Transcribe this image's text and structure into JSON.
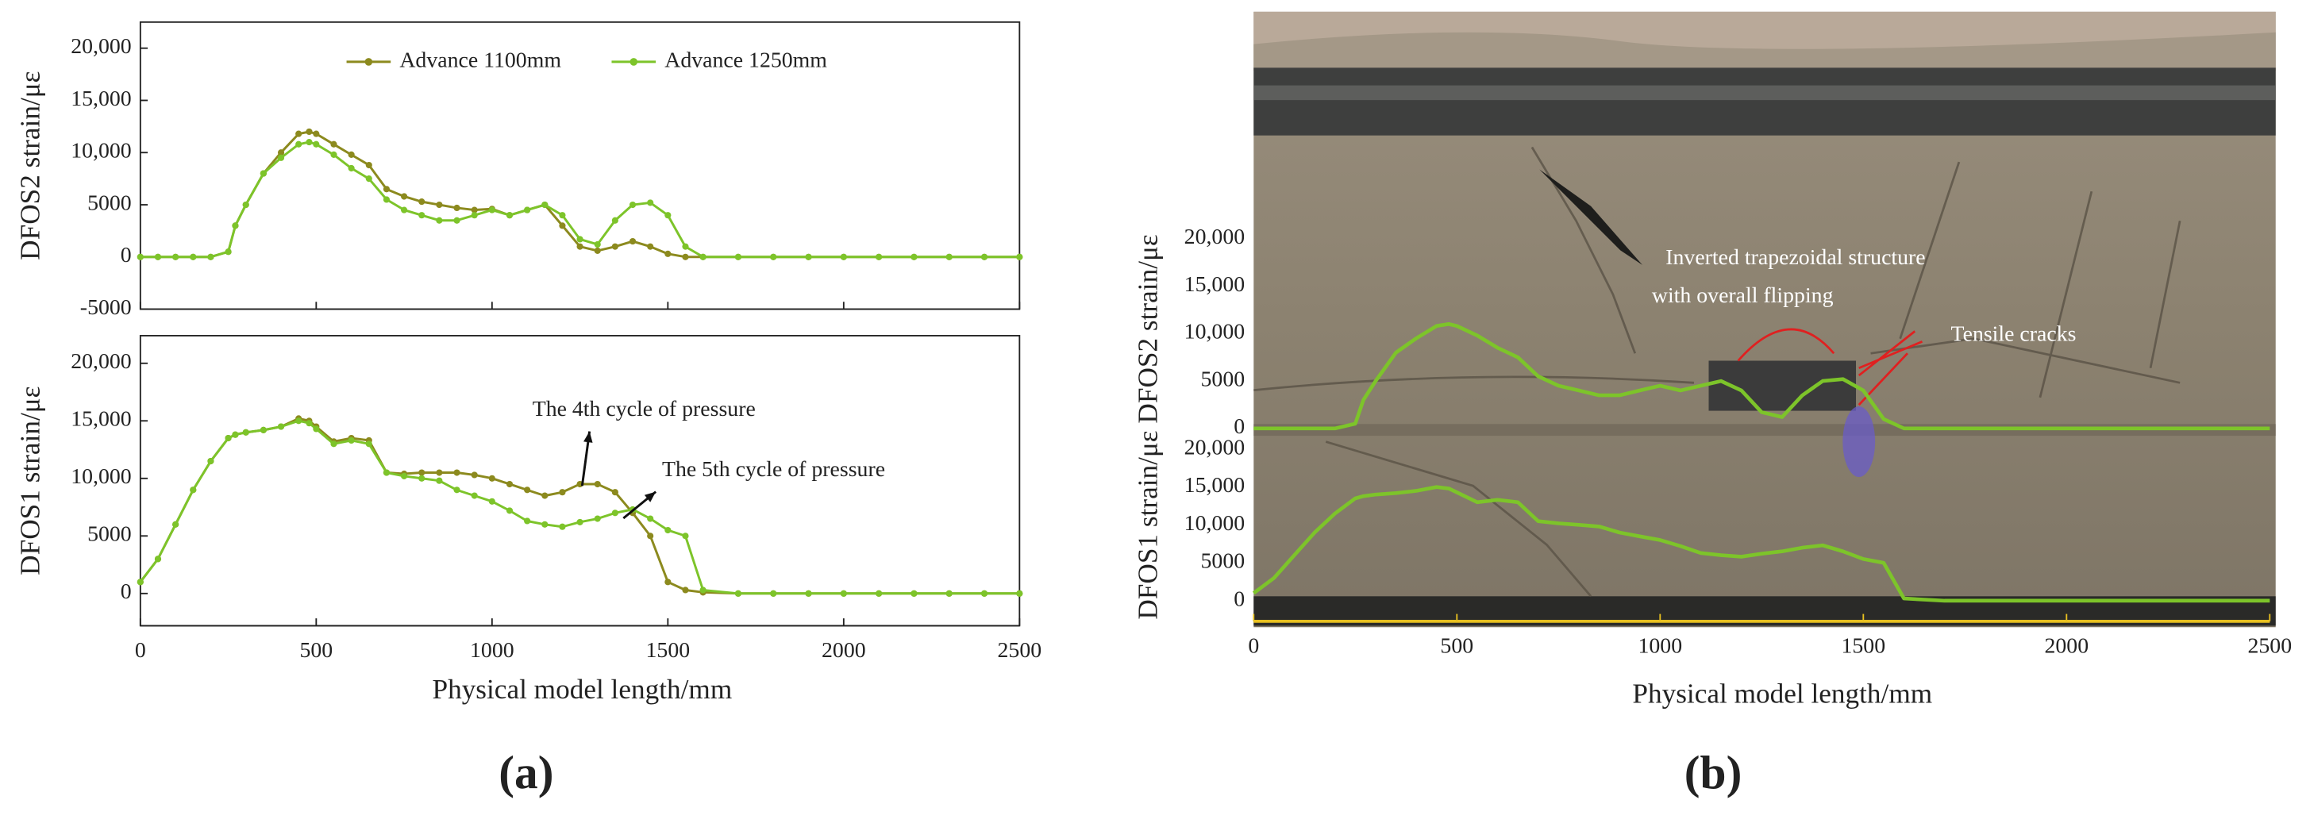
{
  "chart_data": [
    {
      "type": "line",
      "panel_label": "(a)",
      "ylabel": "DFOS2 strain/με",
      "x": [
        0,
        50,
        100,
        150,
        200,
        250,
        270,
        300,
        350,
        400,
        450,
        480,
        500,
        550,
        600,
        650,
        700,
        750,
        800,
        850,
        900,
        950,
        1000,
        1050,
        1100,
        1150,
        1200,
        1250,
        1300,
        1350,
        1400,
        1450,
        1500,
        1550,
        1600,
        1700,
        1800,
        1900,
        2000,
        2100,
        2200,
        2300,
        2400,
        2500
      ],
      "series": [
        {
          "name": "Advance 1100mm",
          "color": "#8c8a1e",
          "values": [
            0,
            0,
            0,
            0,
            0,
            500,
            3000,
            5000,
            8000,
            10000,
            11800,
            12000,
            11800,
            10800,
            9800,
            8800,
            6500,
            5800,
            5300,
            5000,
            4700,
            4500,
            4600,
            4000,
            4500,
            5000,
            3000,
            1000,
            600,
            1000,
            1500,
            1000,
            300,
            0,
            0,
            0,
            0,
            0,
            0,
            0,
            0,
            0,
            0,
            0
          ]
        },
        {
          "name": "Advance 1250mm",
          "color": "#7dc42a",
          "values": [
            0,
            0,
            0,
            0,
            0,
            500,
            3000,
            5000,
            8000,
            9500,
            10800,
            11000,
            10800,
            9800,
            8500,
            7500,
            5500,
            4500,
            4000,
            3500,
            3500,
            4000,
            4500,
            4000,
            4500,
            5000,
            4000,
            1700,
            1200,
            3500,
            5000,
            5200,
            4000,
            1000,
            0,
            0,
            0,
            0,
            0,
            0,
            0,
            0,
            0,
            0
          ]
        }
      ],
      "xlim": [
        0,
        2500
      ],
      "xticks": [
        0,
        500,
        1000,
        1500,
        2000,
        2500
      ],
      "ylim": [
        -5000,
        22500
      ],
      "yticks": [
        -5000,
        0,
        5000,
        {
          "value": 10000,
          "label": "10,000"
        },
        {
          "value": 15000,
          "label": "15,000"
        },
        {
          "value": 20000,
          "label": "20,000"
        }
      ],
      "legend": "top"
    },
    {
      "type": "line",
      "ylabel": "DFOS1 strain/με",
      "xlabel": "Physical model length/mm",
      "x": [
        0,
        50,
        100,
        150,
        200,
        250,
        270,
        300,
        350,
        400,
        450,
        480,
        500,
        550,
        600,
        650,
        700,
        750,
        800,
        850,
        900,
        950,
        1000,
        1050,
        1100,
        1150,
        1200,
        1250,
        1300,
        1350,
        1400,
        1450,
        1500,
        1550,
        1600,
        1700,
        1800,
        1900,
        2000,
        2100,
        2200,
        2300,
        2400,
        2500
      ],
      "series": [
        {
          "name": "Advance 1100mm",
          "color": "#8c8a1e",
          "values": [
            1000,
            3000,
            6000,
            9000,
            11500,
            13500,
            13800,
            14000,
            14200,
            14500,
            15200,
            15000,
            14500,
            13200,
            13500,
            13300,
            10500,
            10400,
            10500,
            10500,
            10500,
            10300,
            10000,
            9500,
            9000,
            8500,
            8800,
            9500,
            9500,
            8800,
            7000,
            5000,
            1000,
            300,
            100,
            0,
            0,
            0,
            0,
            0,
            0,
            0,
            0,
            0
          ]
        },
        {
          "name": "Advance 1250mm",
          "color": "#7dc42a",
          "values": [
            1000,
            3000,
            6000,
            9000,
            11500,
            13500,
            13800,
            14000,
            14200,
            14500,
            15000,
            14800,
            14300,
            13000,
            13300,
            13000,
            10500,
            10200,
            10000,
            9800,
            9000,
            8500,
            8000,
            7200,
            6300,
            6000,
            5800,
            6200,
            6500,
            7000,
            7300,
            6500,
            5500,
            5000,
            300,
            0,
            0,
            0,
            0,
            0,
            0,
            0,
            0,
            0
          ]
        }
      ],
      "xlim": [
        0,
        2500
      ],
      "xticks": [
        0,
        500,
        1000,
        1500,
        2000,
        2500
      ],
      "ylim": [
        -2800,
        22400
      ],
      "yticks": [
        0,
        5000,
        {
          "value": 10000,
          "label": "10,000"
        },
        {
          "value": 15000,
          "label": "15,000"
        },
        {
          "value": 20000,
          "label": "20,000"
        }
      ],
      "annotations": [
        "The 4th cycle of pressure",
        "The 5th cycle of pressure"
      ]
    },
    {
      "type": "line",
      "panel_label": "(b)",
      "x": [
        0,
        50,
        100,
        150,
        200,
        250,
        270,
        300,
        350,
        400,
        450,
        480,
        500,
        550,
        600,
        650,
        700,
        750,
        800,
        850,
        900,
        950,
        1000,
        1050,
        1100,
        1150,
        1200,
        1250,
        1300,
        1350,
        1400,
        1450,
        1500,
        1550,
        1600,
        1700,
        1800,
        1900,
        2000,
        2100,
        2200,
        2300,
        2400,
        2500
      ],
      "color": "#7dc42a",
      "values": [
        0,
        0,
        0,
        0,
        0,
        500,
        3000,
        5000,
        8000,
        9500,
        10800,
        11000,
        10800,
        9800,
        8500,
        7500,
        5500,
        4500,
        4000,
        3500,
        3500,
        4000,
        4500,
        4000,
        4500,
        5000,
        4000,
        1700,
        1200,
        3500,
        5000,
        5200,
        4000,
        1000,
        0,
        0,
        0,
        0,
        0,
        0,
        0,
        0,
        0,
        0
      ],
      "xlim": [
        0,
        2500
      ],
      "ylim": [
        0,
        22200
      ],
      "yticks": [
        0,
        5000,
        {
          "value": 10000,
          "label": "10,000"
        },
        {
          "value": 15000,
          "label": "15,000"
        },
        {
          "value": 20000,
          "label": "20,000"
        }
      ],
      "annotations": [
        "Inverted trapezoidal structure",
        "with overall flipping",
        "Tensile cracks"
      ]
    },
    {
      "type": "line",
      "ylabel": "DFOS1 strain/με DFOS2 strain/με",
      "xlabel": "Physical model length/mm",
      "x": [
        0,
        50,
        100,
        150,
        200,
        250,
        270,
        300,
        350,
        400,
        450,
        480,
        500,
        550,
        600,
        650,
        700,
        750,
        800,
        850,
        900,
        950,
        1000,
        1050,
        1100,
        1150,
        1200,
        1250,
        1300,
        1350,
        1400,
        1450,
        1500,
        1550,
        1600,
        1700,
        1800,
        1900,
        2000,
        2100,
        2200,
        2300,
        2400,
        2500
      ],
      "color": "#7dc42a",
      "values": [
        1000,
        3000,
        6000,
        9000,
        11500,
        13500,
        13800,
        14000,
        14200,
        14500,
        15000,
        14800,
        14300,
        13000,
        13300,
        13000,
        10500,
        10200,
        10000,
        9800,
        9000,
        8500,
        8000,
        7200,
        6300,
        6000,
        5800,
        6200,
        6500,
        7000,
        7300,
        6500,
        5500,
        5000,
        300,
        0,
        0,
        0,
        0,
        0,
        0,
        0,
        0,
        0
      ],
      "xlim": [
        0,
        2500
      ],
      "xticks": [
        0,
        500,
        1000,
        1500,
        2000,
        2500
      ],
      "ylim": [
        0,
        20400
      ],
      "yticks": [
        0,
        5000,
        {
          "value": 10000,
          "label": "10,000"
        },
        {
          "value": 15000,
          "label": "15,000"
        },
        {
          "value": 20000,
          "label": "20,000"
        }
      ]
    }
  ]
}
